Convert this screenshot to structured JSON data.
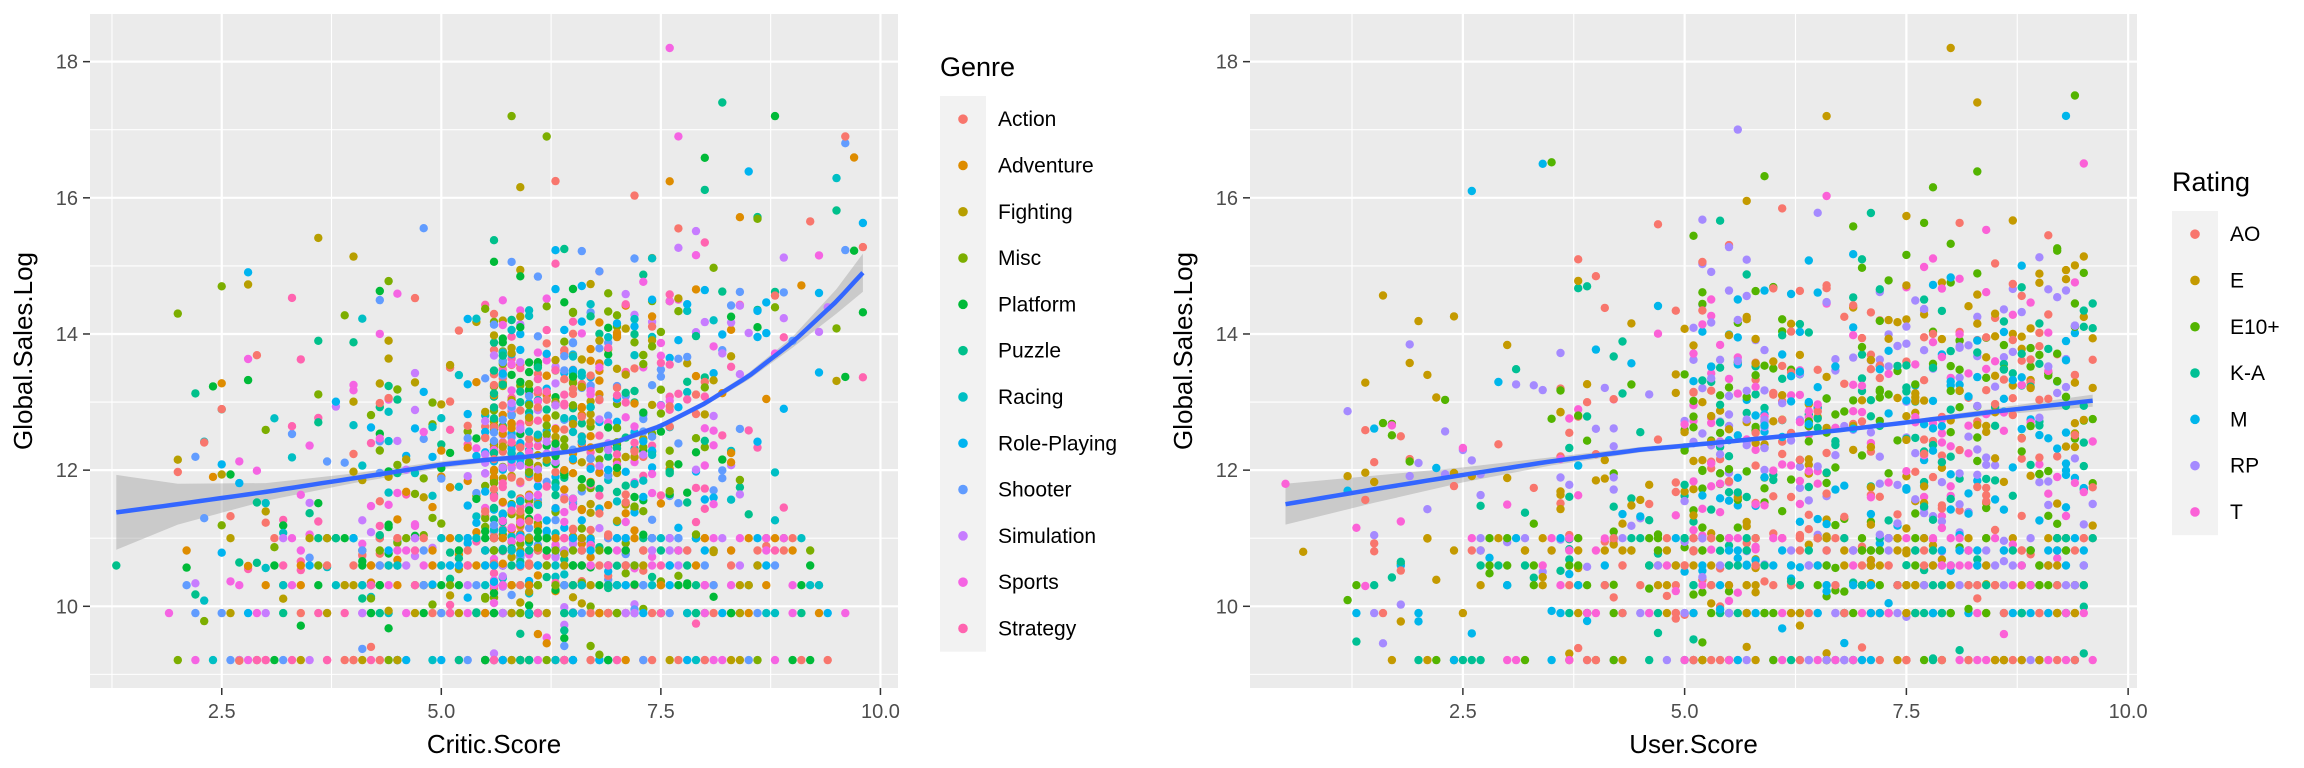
{
  "chart_data": [
    {
      "type": "scatter",
      "x_variable": "Critic.Score",
      "xlabel": "Critic.Score",
      "ylabel": "Global.Sales.Log",
      "xlim": [
        1.0,
        10.2
      ],
      "ylim": [
        8.8,
        18.7
      ],
      "x_ticks": [
        2.5,
        5.0,
        7.5,
        10.0
      ],
      "x_tick_labels": [
        "2.5",
        "5.0",
        "7.5",
        "10.0"
      ],
      "y_ticks": [
        10,
        12,
        14,
        16,
        18
      ],
      "y_tick_labels": [
        "10",
        "12",
        "14",
        "16",
        "18"
      ],
      "grid": true,
      "legend_title": "Genre",
      "legend_position": "right",
      "legend": [
        "Action",
        "Adventure",
        "Fighting",
        "Misc",
        "Platform",
        "Puzzle",
        "Racing",
        "Role-Playing",
        "Shooter",
        "Simulation",
        "Sports",
        "Strategy"
      ],
      "colors": [
        "#F8766D",
        "#DE8C00",
        "#B79F00",
        "#7CAE00",
        "#00BA38",
        "#00C08B",
        "#00BFC4",
        "#00B4F0",
        "#619CFF",
        "#C77CFF",
        "#F564E3",
        "#FF64B0"
      ],
      "smooth_line": {
        "method": "loess",
        "color": "#3366FF",
        "x": [
          1.3,
          2.0,
          3.0,
          4.0,
          5.0,
          5.5,
          6.0,
          6.5,
          7.0,
          7.5,
          8.0,
          8.5,
          9.0,
          9.5,
          9.8
        ],
        "y": [
          11.38,
          11.5,
          11.68,
          11.88,
          12.08,
          12.15,
          12.2,
          12.28,
          12.42,
          12.65,
          12.98,
          13.38,
          13.88,
          14.48,
          14.9
        ],
        "ci_half_width": [
          0.55,
          0.3,
          0.13,
          0.07,
          0.05,
          0.04,
          0.04,
          0.04,
          0.04,
          0.04,
          0.04,
          0.05,
          0.08,
          0.18,
          0.28
        ]
      },
      "points": {
        "count": 1600,
        "x_range": [
          1.3,
          9.8
        ],
        "y_range": [
          9.2,
          18.2
        ],
        "floor_levels": [
          9.21,
          9.9,
          10.31,
          10.6,
          10.82,
          11.0
        ],
        "outliers": [
          {
            "x": 7.6,
            "y": 18.2,
            "genre": "Sports"
          },
          {
            "x": 8.2,
            "y": 17.4,
            "genre": "Puzzle"
          },
          {
            "x": 5.8,
            "y": 17.2,
            "genre": "Misc"
          },
          {
            "x": 8.8,
            "y": 17.2,
            "genre": "Platform"
          },
          {
            "x": 6.2,
            "y": 16.9,
            "genre": "Misc"
          },
          {
            "x": 9.6,
            "y": 16.9,
            "genre": "Action"
          },
          {
            "x": 2.0,
            "y": 14.3,
            "genre": "Misc"
          },
          {
            "x": 2.5,
            "y": 14.7,
            "genre": "Misc"
          },
          {
            "x": 1.3,
            "y": 10.6,
            "genre": "Puzzle"
          },
          {
            "x": 1.9,
            "y": 9.9,
            "genre": "Sports"
          },
          {
            "x": 2.7,
            "y": 9.2,
            "genre": "Action"
          }
        ]
      }
    },
    {
      "type": "scatter",
      "x_variable": "User.Score",
      "xlabel": "User.Score",
      "ylabel": "Global.Sales.Log",
      "xlim": [
        0.1,
        10.1
      ],
      "ylim": [
        8.8,
        18.7
      ],
      "x_ticks": [
        2.5,
        5.0,
        7.5,
        10.0
      ],
      "x_tick_labels": [
        "2.5",
        "5.0",
        "7.5",
        "10.0"
      ],
      "y_ticks": [
        10,
        12,
        14,
        16,
        18
      ],
      "y_tick_labels": [
        "10",
        "12",
        "14",
        "16",
        "18"
      ],
      "grid": true,
      "legend_title": "Rating",
      "legend_position": "right",
      "legend": [
        "AO",
        "E",
        "E10+",
        "K-A",
        "M",
        "RP",
        "T"
      ],
      "colors": [
        "#F8766D",
        "#C49A00",
        "#53B400",
        "#00C094",
        "#00B6EB",
        "#A58AFF",
        "#FB61D7"
      ],
      "smooth_line": {
        "method": "loess",
        "color": "#3366FF",
        "x": [
          0.5,
          1.5,
          2.5,
          3.5,
          4.5,
          5.5,
          6.5,
          7.5,
          8.5,
          9.6
        ],
        "y": [
          11.5,
          11.72,
          11.93,
          12.13,
          12.3,
          12.42,
          12.55,
          12.7,
          12.86,
          13.02
        ],
        "ci_half_width": [
          0.3,
          0.2,
          0.11,
          0.06,
          0.04,
          0.03,
          0.03,
          0.03,
          0.05,
          0.09
        ]
      },
      "points": {
        "count": 1400,
        "x_range": [
          0.5,
          9.7
        ],
        "y_range": [
          9.2,
          18.2
        ],
        "floor_levels": [
          9.21,
          9.9,
          10.31,
          10.6,
          10.82,
          11.0
        ],
        "outliers": [
          {
            "x": 8.0,
            "y": 18.2,
            "rating": "E"
          },
          {
            "x": 8.3,
            "y": 17.4,
            "rating": "E"
          },
          {
            "x": 6.6,
            "y": 17.2,
            "rating": "E"
          },
          {
            "x": 2.6,
            "y": 16.1,
            "rating": "M"
          },
          {
            "x": 3.4,
            "y": 16.5,
            "rating": "M"
          },
          {
            "x": 0.5,
            "y": 11.8,
            "rating": "T"
          },
          {
            "x": 0.7,
            "y": 10.8,
            "rating": "E"
          },
          {
            "x": 1.3,
            "y": 9.9,
            "rating": "M"
          }
        ]
      }
    }
  ]
}
